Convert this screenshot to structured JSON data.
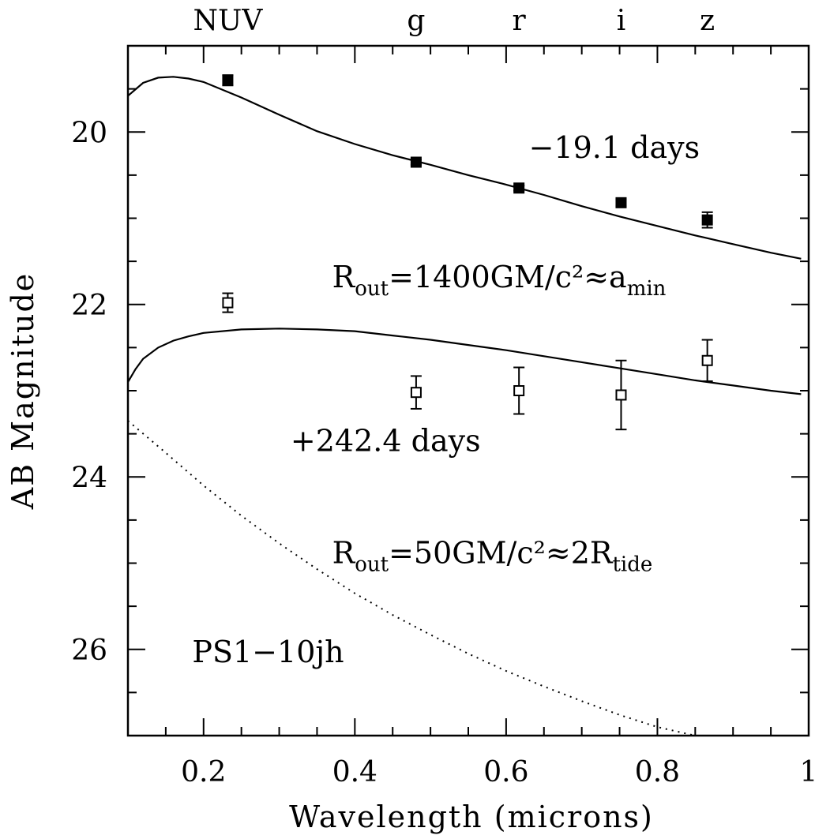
{
  "chart_data": {
    "type": "scatter",
    "title": "",
    "xlabel": "Wavelength (microns)",
    "ylabel": "AB Magnitude",
    "xlim": [
      0.1,
      1.0
    ],
    "ylim": [
      27.0,
      19.0
    ],
    "y_inverted": true,
    "grid": false,
    "x_ticks": [
      {
        "value": 0.2,
        "label": "0.2"
      },
      {
        "value": 0.4,
        "label": "0.4"
      },
      {
        "value": 0.6,
        "label": "0.6"
      },
      {
        "value": 0.8,
        "label": "0.8"
      },
      {
        "value": 1.0,
        "label": "1"
      }
    ],
    "y_ticks": [
      {
        "value": 20,
        "label": "20"
      },
      {
        "value": 22,
        "label": "22"
      },
      {
        "value": 24,
        "label": "24"
      },
      {
        "value": 26,
        "label": "26"
      }
    ],
    "bands": [
      {
        "name": "NUV",
        "x": 0.232
      },
      {
        "name": "g",
        "x": 0.481
      },
      {
        "name": "r",
        "x": 0.617
      },
      {
        "name": "i",
        "x": 0.752
      },
      {
        "name": "z",
        "x": 0.866
      }
    ],
    "series": [
      {
        "label": "−19.1 days",
        "marker": "filled-square",
        "points": [
          {
            "x": 0.232,
            "y": 19.4,
            "err": 0.06
          },
          {
            "x": 0.481,
            "y": 20.35,
            "err": 0.03
          },
          {
            "x": 0.617,
            "y": 20.65,
            "err": 0.03
          },
          {
            "x": 0.752,
            "y": 20.82,
            "err": 0.04
          },
          {
            "x": 0.866,
            "y": 21.02,
            "err": 0.09
          }
        ]
      },
      {
        "label": "+242.4 days",
        "marker": "open-square",
        "points": [
          {
            "x": 0.232,
            "y": 21.98,
            "err": 0.11
          },
          {
            "x": 0.481,
            "y": 23.02,
            "err": 0.19
          },
          {
            "x": 0.617,
            "y": 23.0,
            "err": 0.27
          },
          {
            "x": 0.752,
            "y": 23.05,
            "err": 0.4
          },
          {
            "x": 0.866,
            "y": 22.65,
            "err": 0.24
          }
        ]
      }
    ],
    "model_curves": [
      {
        "style": "solid",
        "points": [
          [
            0.1,
            19.58
          ],
          [
            0.12,
            19.43
          ],
          [
            0.14,
            19.37
          ],
          [
            0.16,
            19.36
          ],
          [
            0.18,
            19.38
          ],
          [
            0.2,
            19.42
          ],
          [
            0.25,
            19.6
          ],
          [
            0.3,
            19.8
          ],
          [
            0.35,
            19.99
          ],
          [
            0.4,
            20.14
          ],
          [
            0.45,
            20.27
          ],
          [
            0.5,
            20.38
          ],
          [
            0.55,
            20.5
          ],
          [
            0.6,
            20.61
          ],
          [
            0.65,
            20.73
          ],
          [
            0.7,
            20.86
          ],
          [
            0.75,
            20.98
          ],
          [
            0.8,
            21.09
          ],
          [
            0.85,
            21.2
          ],
          [
            0.9,
            21.3
          ],
          [
            0.95,
            21.4
          ],
          [
            0.99,
            21.47
          ]
        ]
      },
      {
        "style": "solid",
        "points": [
          [
            0.1,
            22.9
          ],
          [
            0.11,
            22.75
          ],
          [
            0.12,
            22.63
          ],
          [
            0.14,
            22.5
          ],
          [
            0.16,
            22.42
          ],
          [
            0.18,
            22.37
          ],
          [
            0.2,
            22.33
          ],
          [
            0.25,
            22.29
          ],
          [
            0.3,
            22.28
          ],
          [
            0.35,
            22.29
          ],
          [
            0.4,
            22.31
          ],
          [
            0.45,
            22.36
          ],
          [
            0.5,
            22.41
          ],
          [
            0.55,
            22.47
          ],
          [
            0.6,
            22.53
          ],
          [
            0.65,
            22.6
          ],
          [
            0.7,
            22.67
          ],
          [
            0.75,
            22.74
          ],
          [
            0.8,
            22.81
          ],
          [
            0.85,
            22.88
          ],
          [
            0.9,
            22.94
          ],
          [
            0.95,
            23.0
          ],
          [
            0.99,
            23.04
          ]
        ]
      },
      {
        "style": "dotted",
        "points": [
          [
            0.1,
            23.35
          ],
          [
            0.15,
            23.72
          ],
          [
            0.2,
            24.1
          ],
          [
            0.25,
            24.45
          ],
          [
            0.3,
            24.77
          ],
          [
            0.35,
            25.07
          ],
          [
            0.4,
            25.35
          ],
          [
            0.45,
            25.6
          ],
          [
            0.5,
            25.83
          ],
          [
            0.55,
            26.05
          ],
          [
            0.6,
            26.25
          ],
          [
            0.65,
            26.43
          ],
          [
            0.7,
            26.6
          ],
          [
            0.75,
            26.76
          ],
          [
            0.8,
            26.9
          ],
          [
            0.85,
            27.0
          ]
        ]
      }
    ],
    "annotations": [
      {
        "key": "early",
        "text": "−19.1 days",
        "x": 0.63,
        "y": 20.3
      },
      {
        "key": "rout_large",
        "main": "R",
        "sub": "out",
        "text": "=1400GM/c²≈a",
        "sub2": "min",
        "x": 0.37,
        "y": 21.8
      },
      {
        "key": "late",
        "text": "+242.4 days",
        "x": 0.315,
        "y": 23.7
      },
      {
        "key": "rout_small",
        "main": "R",
        "sub": "out",
        "text": "=50GM/c²≈2R",
        "sub2": "tide",
        "x": 0.37,
        "y": 25.0
      },
      {
        "key": "object",
        "text": "PS1−10jh",
        "x": 0.185,
        "y": 26.15
      }
    ]
  }
}
